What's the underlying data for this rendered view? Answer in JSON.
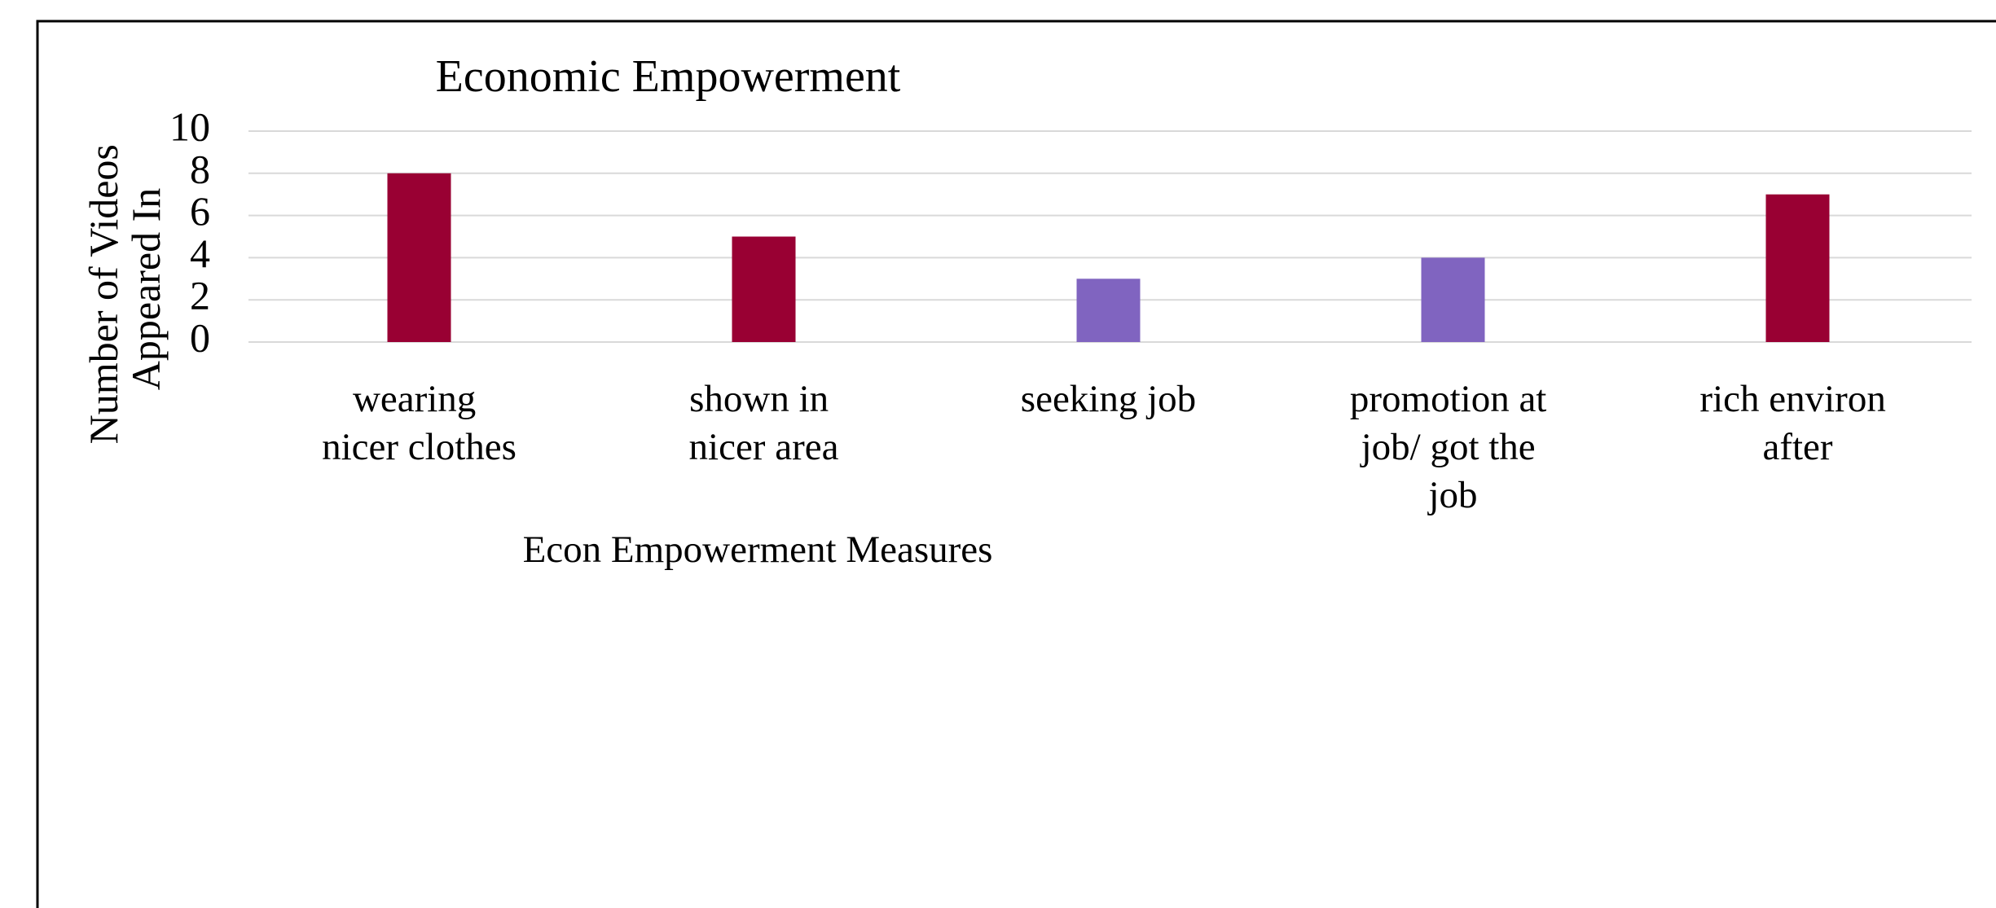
{
  "chart_data": {
    "type": "bar",
    "title": "Economic Empowerment",
    "x_label": "Econ Empowerment Measures",
    "y_label": "Number of Videos Appeared In",
    "categories": [
      "wearing nicer clothes",
      "shown in nicer area",
      "seeking job",
      "promotion at job/ got the job",
      "rich environ after"
    ],
    "values": [
      8,
      5,
      3,
      4,
      7
    ],
    "colors": [
      "#990033",
      "#990033",
      "#8064c0",
      "#8064c0",
      "#990033"
    ],
    "ylim": [
      0,
      10
    ],
    "yticks": [
      0,
      2,
      4,
      6,
      8,
      10
    ],
    "grid": true
  }
}
